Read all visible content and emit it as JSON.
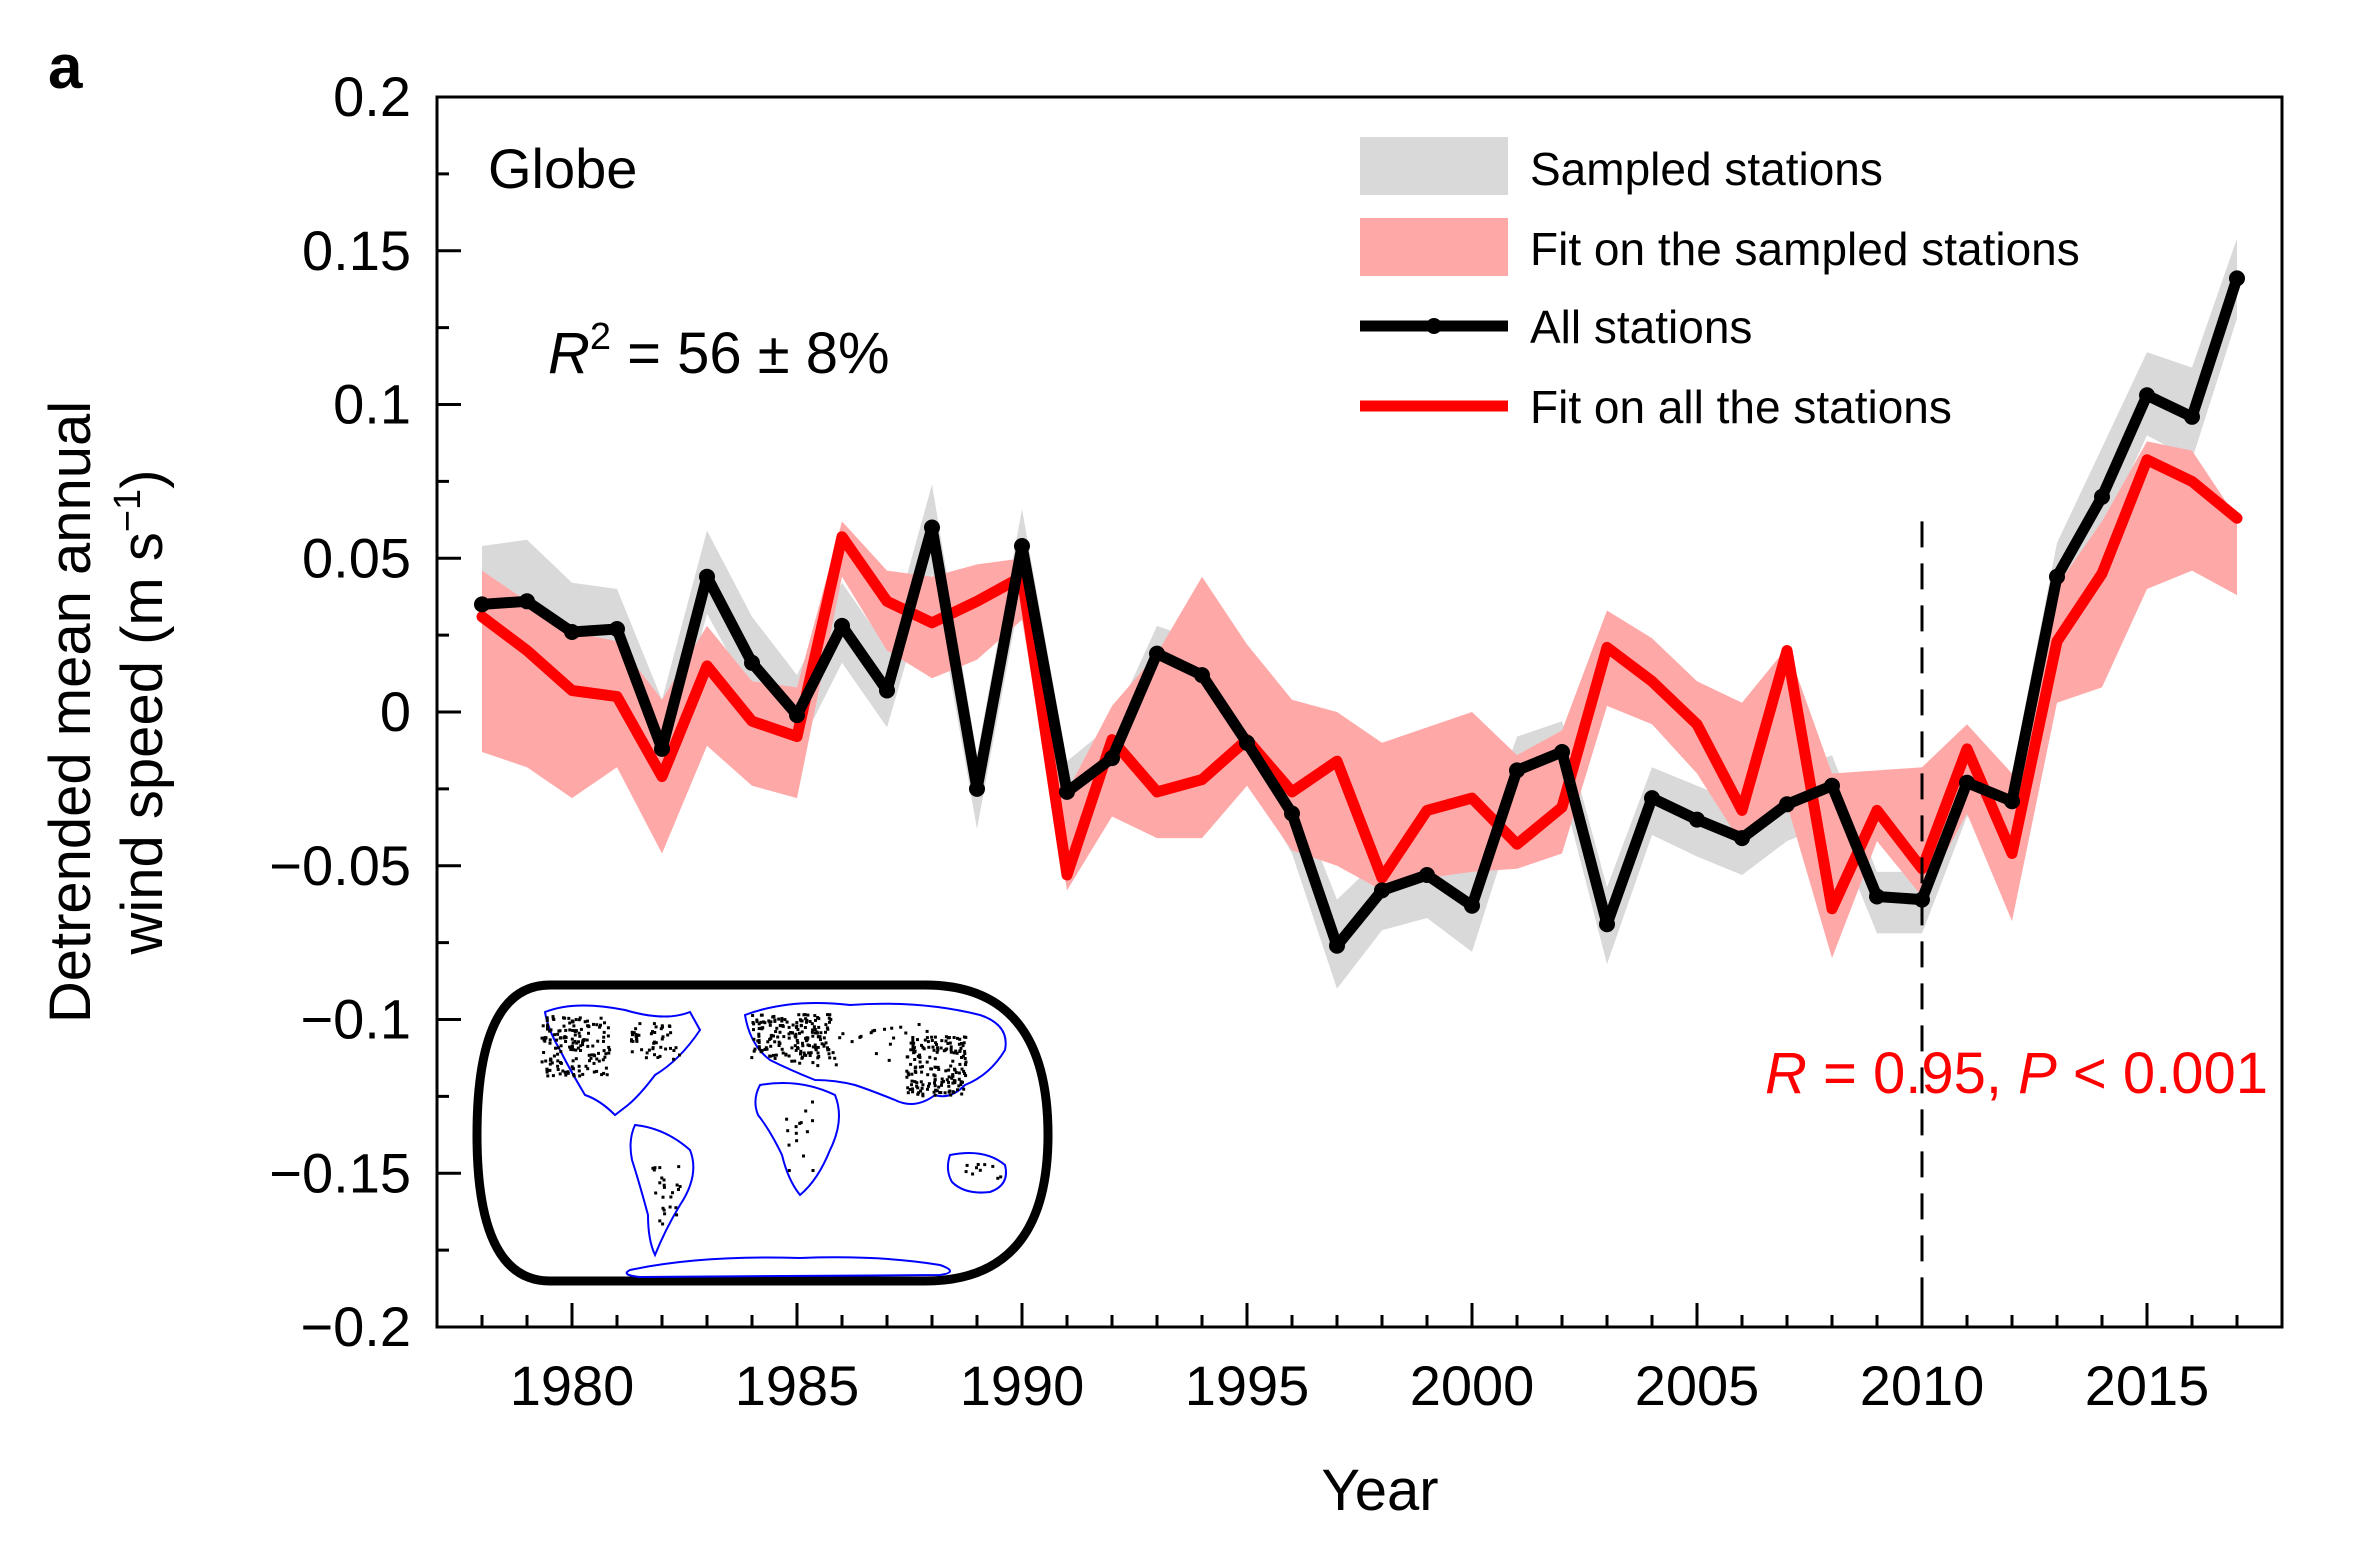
{
  "panel_label": "a",
  "region_label": "Globe",
  "stat_r2": {
    "prefix": "R",
    "sup": "2",
    "rest": " = 56 ± 8%"
  },
  "stat_r": {
    "r": "R",
    "rv": " = 0.95, ",
    "p": "P",
    "pv": " < 0.001"
  },
  "colors": {
    "black": "#000000",
    "red": "#ff0000",
    "gray_band": "#d9d9d9",
    "pink_band": "#ffa8a8",
    "map_coast": "#0000ff"
  },
  "icons": {
    "inset_map": "world-map-icon"
  },
  "chart_data": {
    "type": "line",
    "title": "",
    "xlabel": "Year",
    "ylabel_line1": "Detrended mean annual",
    "ylabel_line2": "wind speed (m s",
    "ylabel_sup": "−1",
    "ylabel_end": ")",
    "xlim": [
      1977,
      2018
    ],
    "ylim": [
      -0.2,
      0.2
    ],
    "x_ticks": [
      1980,
      1985,
      1990,
      1995,
      2000,
      2005,
      2010,
      2015
    ],
    "y_ticks": [
      0.2,
      0.15,
      0.1,
      0.05,
      0,
      -0.05,
      -0.1,
      -0.15,
      -0.2
    ],
    "y_tick_labels": [
      "0.2",
      "0.15",
      "0.1",
      "0.05",
      "0",
      "−0.05",
      "−0.1",
      "−0.15",
      "−0.2"
    ],
    "vline_x": 2010,
    "years": [
      1978,
      1979,
      1980,
      1981,
      1982,
      1983,
      1984,
      1985,
      1986,
      1987,
      1988,
      1989,
      1990,
      1991,
      1992,
      1993,
      1994,
      1995,
      1996,
      1997,
      1998,
      1999,
      2000,
      2001,
      2002,
      2003,
      2004,
      2005,
      2006,
      2007,
      2008,
      2009,
      2010,
      2011,
      2012,
      2013,
      2014,
      2015,
      2016,
      2017
    ],
    "legend": [
      {
        "label": "Sampled stations",
        "kind": "band-gray"
      },
      {
        "label": "Fit on the sampled stations",
        "kind": "band-pink"
      },
      {
        "label": "All stations",
        "kind": "line-black"
      },
      {
        "label": "Fit on all the stations",
        "kind": "line-red"
      }
    ],
    "series": [
      {
        "name": "All stations",
        "values": [
          0.035,
          0.036,
          0.026,
          0.027,
          -0.012,
          0.044,
          0.016,
          -0.001,
          0.028,
          0.007,
          0.06,
          -0.025,
          0.054,
          -0.026,
          -0.015,
          0.019,
          0.012,
          -0.01,
          -0.033,
          -0.076,
          -0.058,
          -0.053,
          -0.063,
          -0.019,
          -0.013,
          -0.069,
          -0.028,
          -0.035,
          -0.041,
          -0.03,
          -0.024,
          -0.06,
          -0.061,
          -0.023,
          -0.029,
          0.044,
          0.07,
          0.103,
          0.096,
          0.141
        ]
      },
      {
        "name": "Fit on all the stations",
        "values": [
          0.031,
          0.02,
          0.007,
          0.005,
          -0.021,
          0.015,
          -0.003,
          -0.008,
          0.057,
          0.036,
          0.029,
          0.036,
          0.044,
          -0.053,
          -0.009,
          -0.026,
          -0.022,
          -0.009,
          -0.026,
          -0.016,
          -0.054,
          -0.032,
          -0.028,
          -0.043,
          -0.031,
          0.021,
          0.01,
          -0.004,
          -0.032,
          0.02,
          -0.064,
          -0.032,
          -0.051,
          -0.012,
          -0.046,
          0.023,
          0.045,
          0.082,
          0.075,
          0.063
        ]
      }
    ],
    "bands": [
      {
        "name": "Sampled stations",
        "upper": [
          0.054,
          0.056,
          0.042,
          0.04,
          0.004,
          0.059,
          0.031,
          0.012,
          0.042,
          0.021,
          0.074,
          -0.014,
          0.066,
          -0.016,
          -0.004,
          0.028,
          0.023,
          -0.001,
          -0.024,
          -0.061,
          -0.047,
          -0.042,
          -0.05,
          -0.008,
          -0.003,
          -0.057,
          -0.018,
          -0.024,
          -0.03,
          -0.02,
          -0.014,
          -0.052,
          -0.052,
          -0.014,
          -0.02,
          0.055,
          0.086,
          0.117,
          0.112,
          0.154
        ],
        "lower": [
          0.022,
          0.023,
          0.014,
          0.015,
          -0.022,
          0.032,
          0.005,
          -0.013,
          0.016,
          -0.005,
          0.045,
          -0.038,
          0.041,
          -0.037,
          -0.026,
          0.008,
          0.001,
          -0.021,
          -0.046,
          -0.09,
          -0.071,
          -0.067,
          -0.078,
          -0.032,
          -0.025,
          -0.082,
          -0.04,
          -0.047,
          -0.053,
          -0.042,
          -0.036,
          -0.072,
          -0.072,
          -0.034,
          -0.039,
          0.035,
          0.058,
          0.09,
          0.082,
          0.128
        ]
      },
      {
        "name": "Fit on the sampled stations",
        "upper": [
          0.046,
          0.036,
          0.026,
          0.023,
          0.004,
          0.028,
          0.01,
          0.008,
          0.062,
          0.046,
          0.044,
          0.048,
          0.05,
          -0.026,
          0.002,
          0.019,
          0.044,
          0.022,
          0.004,
          0.0,
          -0.01,
          -0.005,
          0.0,
          -0.014,
          -0.006,
          0.033,
          0.024,
          0.01,
          0.003,
          0.021,
          -0.02,
          -0.019,
          -0.018,
          -0.004,
          -0.02,
          0.041,
          0.062,
          0.088,
          0.085,
          0.063
        ],
        "lower": [
          -0.013,
          -0.018,
          -0.028,
          -0.018,
          -0.046,
          -0.011,
          -0.024,
          -0.028,
          0.044,
          0.02,
          0.011,
          0.017,
          0.03,
          -0.058,
          -0.034,
          -0.041,
          -0.041,
          -0.024,
          -0.045,
          -0.05,
          -0.058,
          -0.054,
          -0.052,
          -0.051,
          -0.046,
          0.002,
          -0.004,
          -0.02,
          -0.043,
          -0.03,
          -0.08,
          -0.042,
          -0.06,
          -0.033,
          -0.068,
          0.003,
          0.008,
          0.04,
          0.046,
          0.038
        ]
      }
    ]
  }
}
